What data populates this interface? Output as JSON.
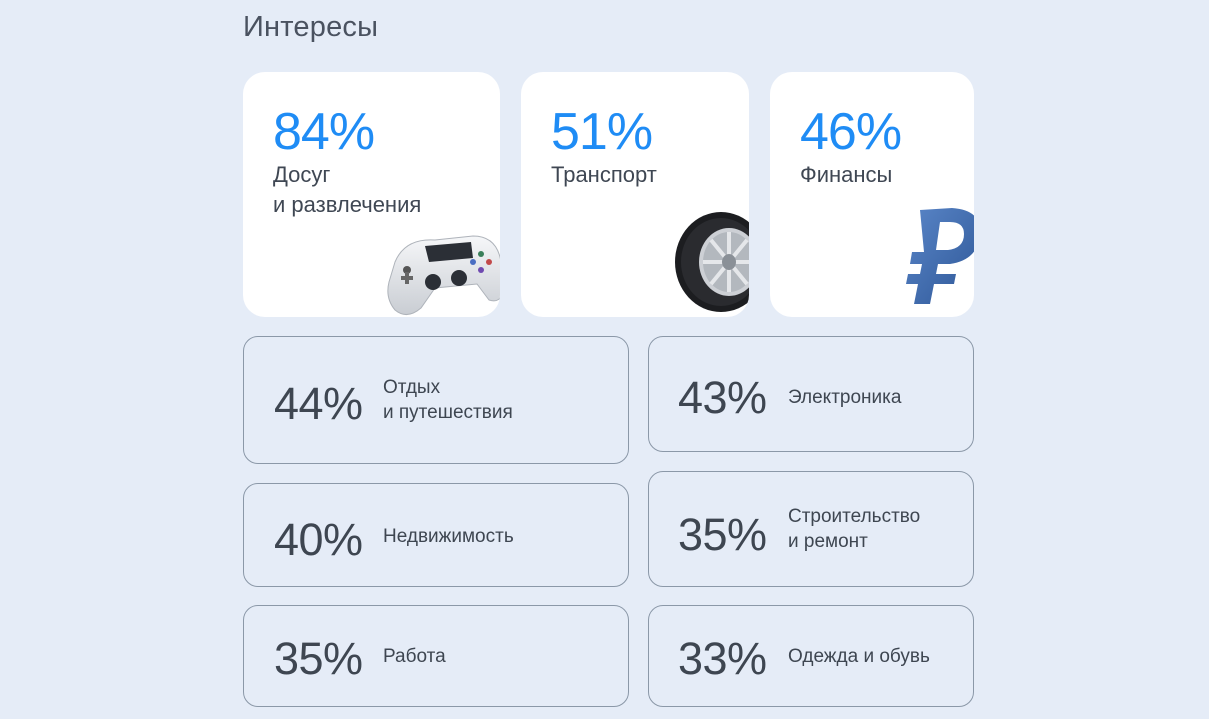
{
  "section": {
    "title": "Интересы"
  },
  "highlights": [
    {
      "percent": "84%",
      "label": "Досуг\nи развлечения",
      "icon": "gamepad-icon"
    },
    {
      "percent": "51%",
      "label": "Транспорт",
      "icon": "tire-icon"
    },
    {
      "percent": "46%",
      "label": "Финансы",
      "icon": "ruble-icon"
    }
  ],
  "interests": [
    {
      "percent": "44%",
      "label": "Отдых\nи путешествия"
    },
    {
      "percent": "43%",
      "label": "Электроника"
    },
    {
      "percent": "40%",
      "label": "Недвижимость"
    },
    {
      "percent": "35%",
      "label": "Строительство\nи ремонт"
    },
    {
      "percent": "35%",
      "label": "Работа"
    },
    {
      "percent": "33%",
      "label": "Одежда и обувь"
    }
  ],
  "colors": {
    "background": "#e5ecf7",
    "accent": "#1f8cf5",
    "text": "#3e4651",
    "border": "#8b98a8"
  }
}
